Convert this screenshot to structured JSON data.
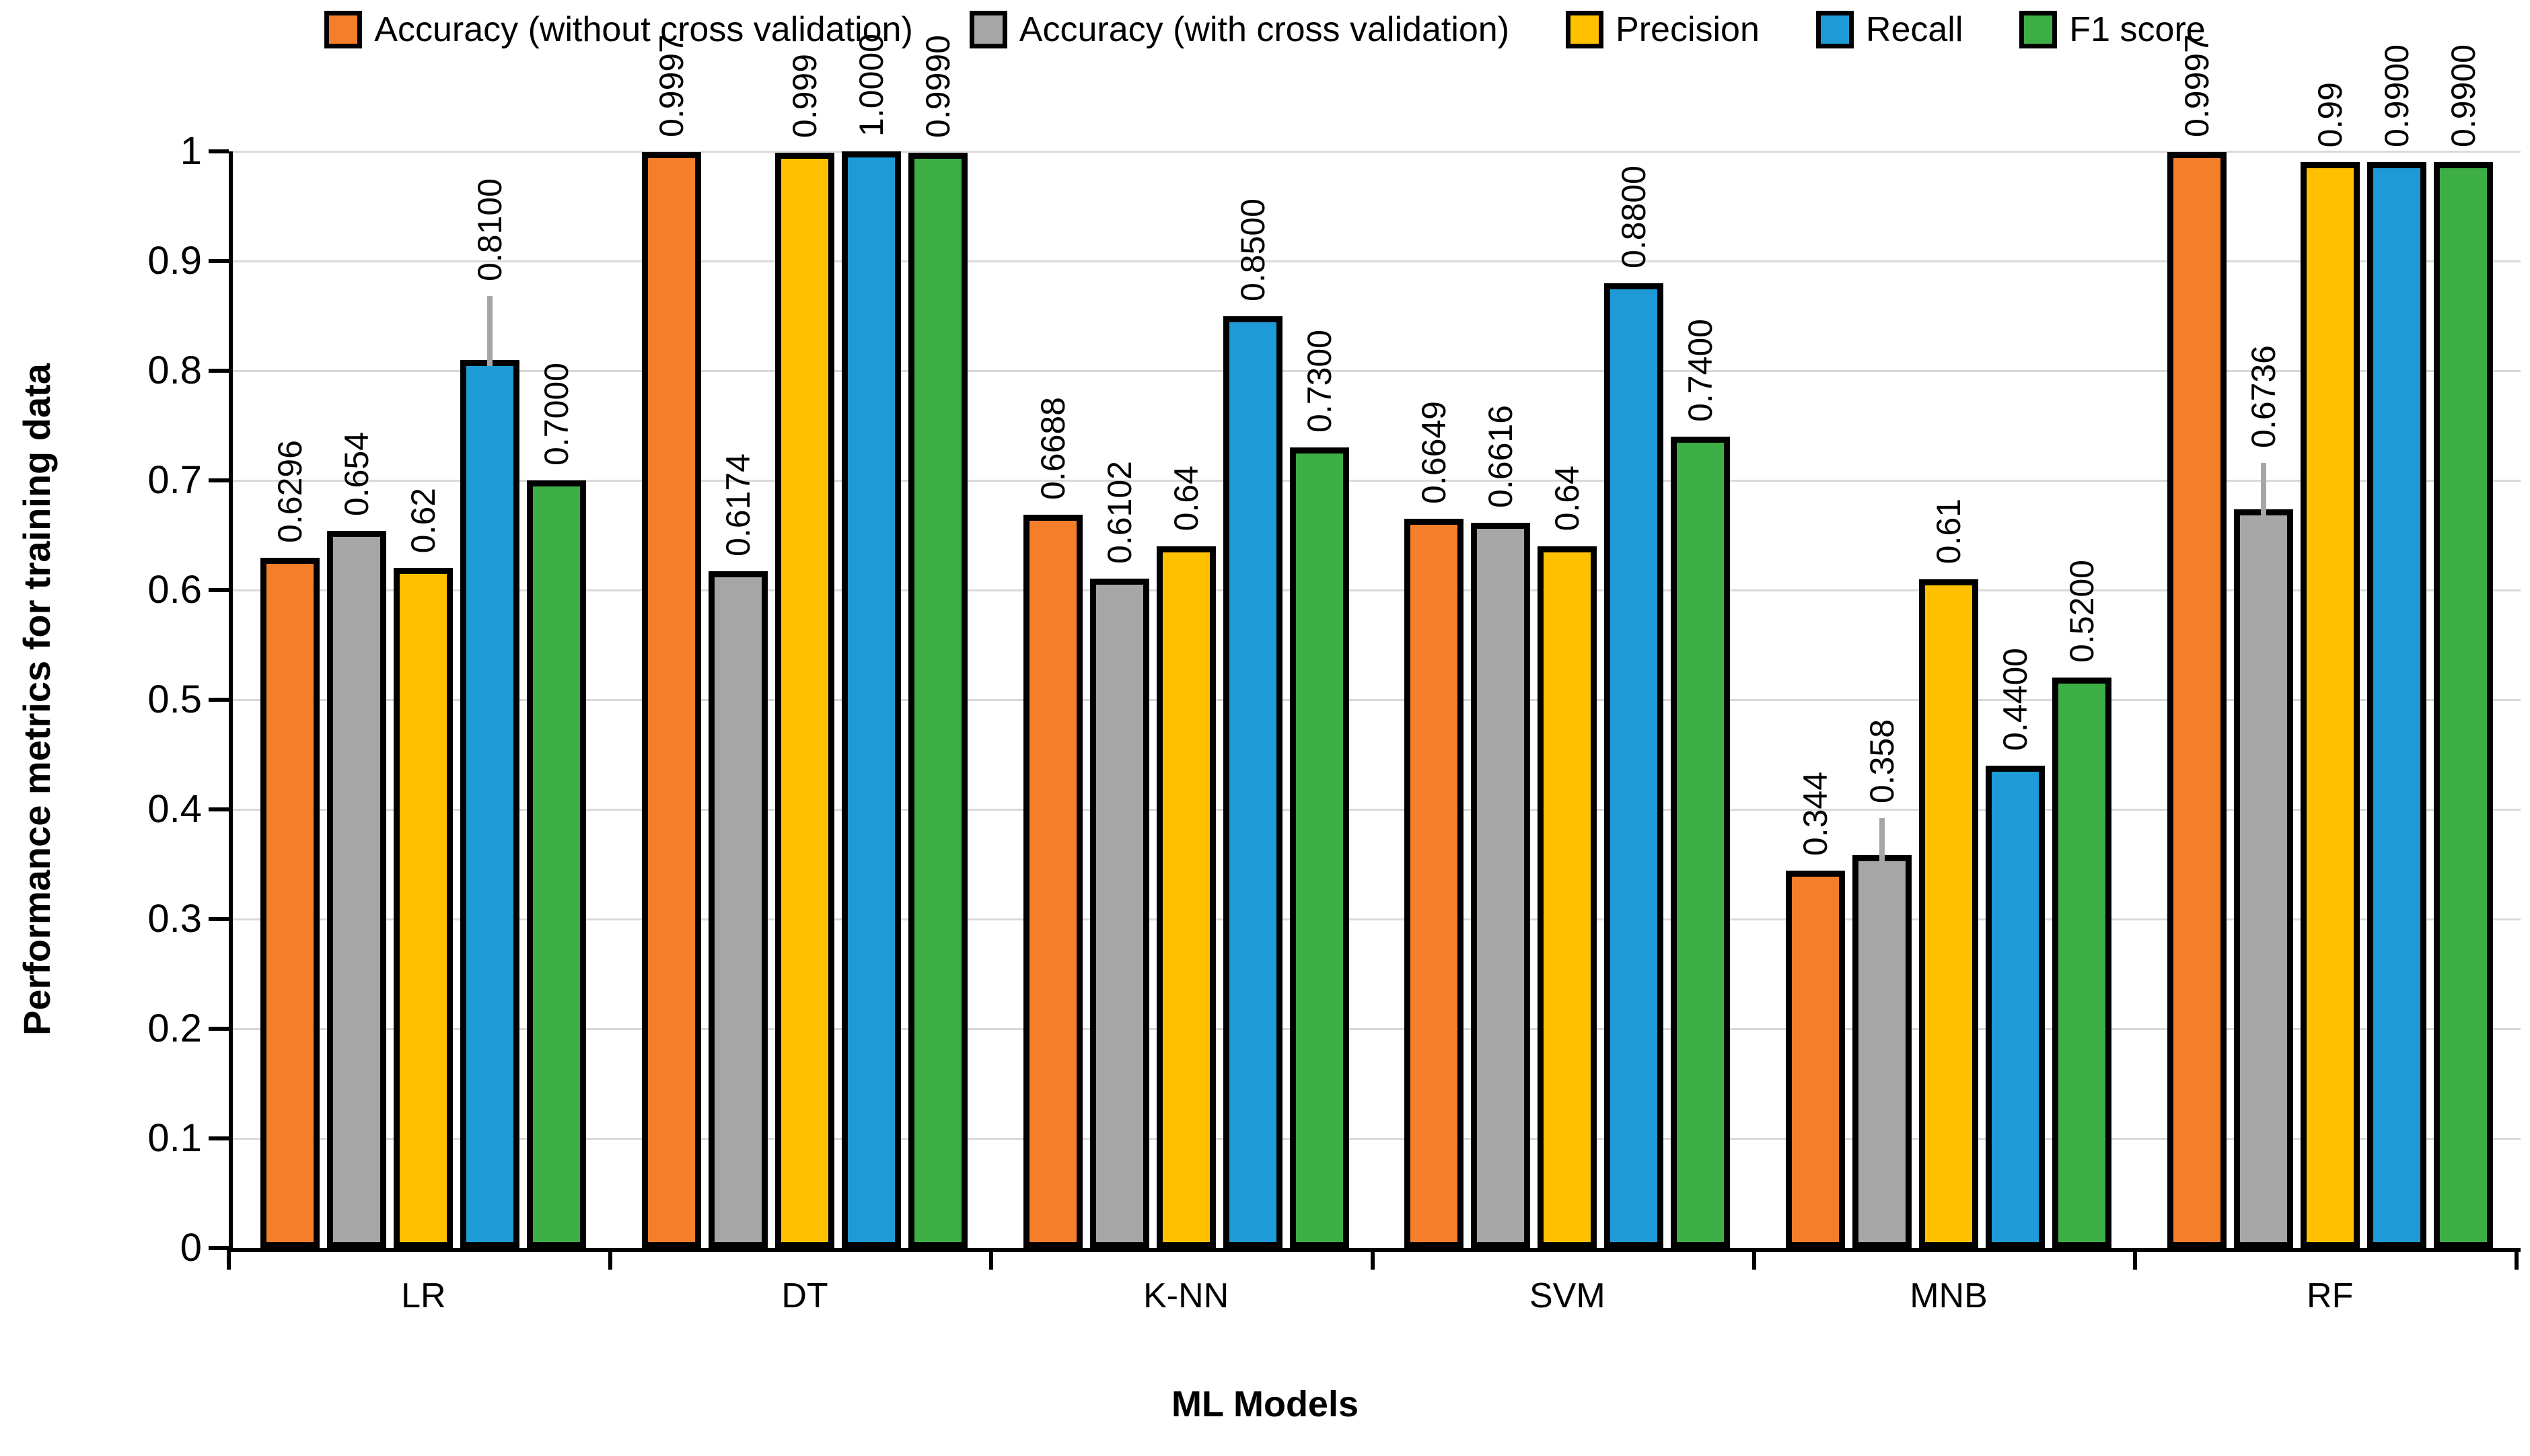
{
  "legend": {
    "items": [
      {
        "label": "Accuracy (without cross validation)",
        "color": "#F57E2B"
      },
      {
        "label": "Accuracy (with cross validation)",
        "color": "#A6A6A6"
      },
      {
        "label": "Precision",
        "color": "#FFC000"
      },
      {
        "label": "Recall",
        "color": "#1E9BD7"
      },
      {
        "label": "F1 score",
        "color": "#3DAE46"
      }
    ]
  },
  "axes": {
    "y_title": "Performance metrics for training data",
    "x_title": "ML Models",
    "y_ticks": [
      "1",
      "0.9",
      "0.8",
      "0.7",
      "0.6",
      "0.5",
      "0.4",
      "0.3",
      "0.2",
      "0.1",
      "0"
    ],
    "y_min": 0,
    "y_max": 1,
    "gridline_color": "#D9D9D9",
    "error_bar_color": "#A6A6A6"
  },
  "chart_data": {
    "type": "bar",
    "title": "",
    "xlabel": "ML Models",
    "ylabel": "Performance metrics for training data",
    "ylim": [
      0,
      1
    ],
    "grid": true,
    "legend_position": "top",
    "categories": [
      "LR",
      "DT",
      "K-NN",
      "SVM",
      "MNB",
      "RF"
    ],
    "series": [
      {
        "name": "Accuracy (without cross validation)",
        "color": "#F57E2B",
        "values": [
          0.6296,
          0.9997,
          0.6688,
          0.6649,
          0.344,
          0.9997
        ],
        "labels": [
          "0.6296",
          "0.9997",
          "0.6688",
          "0.6649",
          "0.344",
          "0.9997"
        ],
        "error_to": [
          null,
          null,
          null,
          null,
          null,
          null
        ]
      },
      {
        "name": "Accuracy (with cross validation)",
        "color": "#A6A6A6",
        "values": [
          0.654,
          0.6174,
          0.6102,
          0.6616,
          0.358,
          0.6736
        ],
        "labels": [
          "0.654",
          "0.6174",
          "0.6102",
          "0.6616",
          "0.358",
          "0.6736"
        ],
        "error_to": [
          null,
          null,
          null,
          null,
          0.392,
          0.716
        ]
      },
      {
        "name": "Precision",
        "color": "#FFC000",
        "values": [
          0.62,
          0.999,
          0.64,
          0.64,
          0.61,
          0.99
        ],
        "labels": [
          "0.62",
          "0.999",
          "0.64",
          "0.64",
          "0.61",
          "0.99"
        ],
        "error_to": [
          null,
          null,
          null,
          null,
          null,
          null
        ]
      },
      {
        "name": "Recall",
        "color": "#1E9BD7",
        "values": [
          0.81,
          1.0,
          0.85,
          0.88,
          0.44,
          0.99
        ],
        "labels": [
          "0.8100",
          "1.0000",
          "0.8500",
          "0.8800",
          "0.4400",
          "0.9900"
        ],
        "error_to": [
          0.868,
          null,
          null,
          null,
          null,
          null
        ]
      },
      {
        "name": "F1 score",
        "color": "#3DAE46",
        "values": [
          0.7,
          0.999,
          0.73,
          0.74,
          0.52,
          0.99
        ],
        "labels": [
          "0.7000",
          "0.9990",
          "0.7300",
          "0.7400",
          "0.5200",
          "0.9900"
        ],
        "error_to": [
          null,
          null,
          null,
          null,
          null,
          null
        ]
      }
    ]
  }
}
